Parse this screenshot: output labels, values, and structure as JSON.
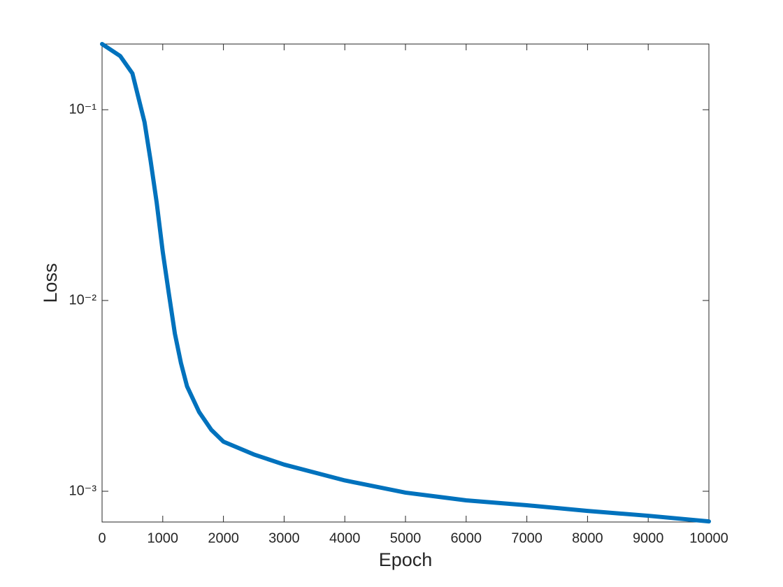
{
  "chart_data": {
    "type": "line",
    "x_label": "Epoch",
    "y_label": "Loss",
    "x": [
      0,
      300,
      500,
      700,
      800,
      900,
      1000,
      1100,
      1200,
      1300,
      1400,
      1600,
      1800,
      2000,
      2500,
      3000,
      4000,
      5000,
      6000,
      7000,
      8000,
      9000,
      10000
    ],
    "series": [
      {
        "color": "#0072bd",
        "values": [
          0.221,
          0.191,
          0.155,
          0.086,
          0.054,
          0.0326,
          0.018,
          0.0109,
          0.0067,
          0.0047,
          0.00355,
          0.0026,
          0.0021,
          0.00182,
          0.00156,
          0.00138,
          0.00114,
          0.000984,
          0.000896,
          0.000845,
          0.000789,
          0.000744,
          0.000695
        ]
      }
    ],
    "xlim": [
      0,
      10000
    ],
    "xticks": [
      0,
      1000,
      2000,
      3000,
      4000,
      5000,
      6000,
      7000,
      8000,
      9000,
      10000
    ],
    "ylim": [
      0.00069,
      0.221
    ],
    "y_scale": "log",
    "yticks": [
      {
        "value": 0.001,
        "label": "10⁻³"
      },
      {
        "value": 0.01,
        "label": "10⁻²"
      },
      {
        "value": 0.1,
        "label": "10⁻¹"
      }
    ],
    "grid": false
  }
}
